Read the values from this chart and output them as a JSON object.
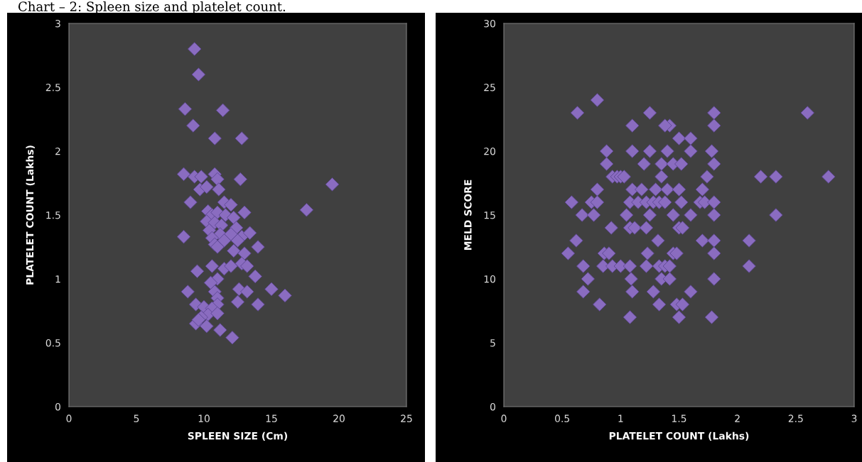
{
  "chart_data": [
    {
      "type": "scatter",
      "annotations": [
        "Chart – 2: Spleen size and platelet count."
      ],
      "xlabel": "SPLEEN SIZE (Cm)",
      "ylabel": "PLATELET COUNT (Lakhs)",
      "xlim": [
        0,
        25
      ],
      "xticks": [
        0,
        5,
        10,
        15,
        20,
        25
      ],
      "ylim": [
        0,
        3
      ],
      "yticks": [
        0,
        0.5,
        1,
        1.5,
        2,
        2.5,
        3
      ],
      "marker": "diamond",
      "series": [
        {
          "color": "#8a6cc0",
          "x": [
            9.3,
            9.6,
            8.6,
            11.4,
            9.2,
            10.8,
            12.8,
            8.5,
            9.3,
            9.8,
            10.8,
            11,
            12.7,
            19.5,
            9.7,
            10.2,
            11.1,
            9,
            17.6,
            11.5,
            12,
            13,
            10.3,
            10.6,
            11,
            11.6,
            12.2,
            10.2,
            10.8,
            11.3,
            12.4,
            10.4,
            11.2,
            12,
            12.8,
            8.5,
            10.6,
            11.5,
            12.5,
            13.4,
            10.8,
            11,
            12.2,
            13,
            14,
            12.8,
            13.2,
            11.5,
            10.6,
            12,
            9.5,
            13.8,
            11,
            10.5,
            8.8,
            12.6,
            13.2,
            15,
            16,
            10.8,
            11,
            9.4,
            11,
            12.5,
            14,
            10,
            10.6,
            10.3,
            9.8,
            11,
            9.4,
            10.2,
            11.2,
            12.1,
            9.6
          ],
          "values": [
            2.8,
            2.6,
            2.33,
            2.32,
            2.2,
            2.1,
            2.1,
            1.82,
            1.8,
            1.8,
            1.82,
            1.78,
            1.78,
            1.74,
            1.7,
            1.72,
            1.7,
            1.6,
            1.54,
            1.6,
            1.58,
            1.52,
            1.53,
            1.5,
            1.52,
            1.5,
            1.48,
            1.45,
            1.44,
            1.42,
            1.4,
            1.38,
            1.35,
            1.35,
            1.33,
            1.33,
            1.32,
            1.3,
            1.3,
            1.36,
            1.27,
            1.25,
            1.22,
            1.2,
            1.25,
            1.12,
            1.1,
            1.08,
            1.1,
            1.1,
            1.06,
            1.02,
            1.0,
            0.97,
            0.9,
            0.92,
            0.9,
            0.92,
            0.87,
            0.9,
            0.85,
            0.8,
            0.8,
            0.82,
            0.8,
            0.78,
            0.77,
            0.72,
            0.7,
            0.73,
            0.65,
            0.63,
            0.6,
            0.54,
            0.68
          ]
        }
      ]
    },
    {
      "type": "scatter",
      "xlabel": "PLATELET COUNT (Lakhs)",
      "ylabel": "MELD SCORE",
      "xlim": [
        0,
        3
      ],
      "xticks": [
        0,
        0.5,
        1,
        1.5,
        2,
        2.5,
        3
      ],
      "ylim": [
        0,
        30
      ],
      "yticks": [
        0,
        5,
        10,
        15,
        20,
        25,
        30
      ],
      "marker": "diamond",
      "series": [
        {
          "color": "#8a6cc0",
          "x": [
            0.63,
            0.8,
            1.25,
            1.8,
            2.6,
            1.1,
            1.42,
            1.38,
            1.8,
            1.5,
            1.6,
            0.88,
            1.1,
            1.25,
            1.4,
            1.6,
            1.78,
            0.88,
            1.2,
            1.35,
            1.45,
            1.52,
            1.8,
            0.93,
            0.97,
            1.0,
            1.03,
            1.35,
            1.74,
            2.2,
            2.33,
            2.78,
            0.8,
            1.1,
            1.18,
            1.3,
            1.4,
            1.5,
            1.7,
            0.58,
            0.75,
            0.8,
            1.08,
            1.15,
            1.22,
            1.28,
            1.33,
            1.38,
            1.52,
            1.68,
            1.72,
            1.8,
            0.67,
            0.77,
            1.05,
            1.25,
            1.45,
            1.6,
            1.8,
            2.33,
            0.92,
            1.08,
            1.12,
            1.22,
            1.5,
            1.53,
            0.62,
            1.32,
            1.7,
            1.8,
            2.1,
            0.55,
            0.86,
            0.9,
            1.23,
            1.45,
            1.48,
            1.8,
            0.68,
            0.85,
            0.93,
            1.0,
            1.08,
            1.22,
            1.33,
            1.38,
            1.42,
            2.1,
            0.72,
            1.09,
            1.35,
            1.42,
            1.8,
            0.68,
            1.1,
            1.28,
            1.6,
            0.82,
            1.33,
            1.48,
            1.53,
            1.08,
            1.5,
            1.78
          ],
          "values": [
            23,
            24,
            23,
            23,
            23,
            22,
            22,
            22,
            22,
            21,
            21,
            20,
            20,
            20,
            20,
            20,
            20,
            19,
            19,
            19,
            19,
            19,
            19,
            18,
            18,
            18,
            18,
            18,
            18,
            18,
            18,
            18,
            17,
            17,
            17,
            17,
            17,
            17,
            17,
            16,
            16,
            16,
            16,
            16,
            16,
            16,
            16,
            16,
            16,
            16,
            16,
            16,
            15,
            15,
            15,
            15,
            15,
            15,
            15,
            15,
            14,
            14,
            14,
            14,
            14,
            14,
            13,
            13,
            13,
            13,
            13,
            12,
            12,
            12,
            12,
            12,
            12,
            12,
            11,
            11,
            11,
            11,
            11,
            11,
            11,
            11,
            11,
            11,
            10,
            10,
            10,
            10,
            10,
            9,
            9,
            9,
            9,
            8,
            8,
            8,
            8,
            7,
            7,
            7
          ]
        }
      ]
    }
  ]
}
